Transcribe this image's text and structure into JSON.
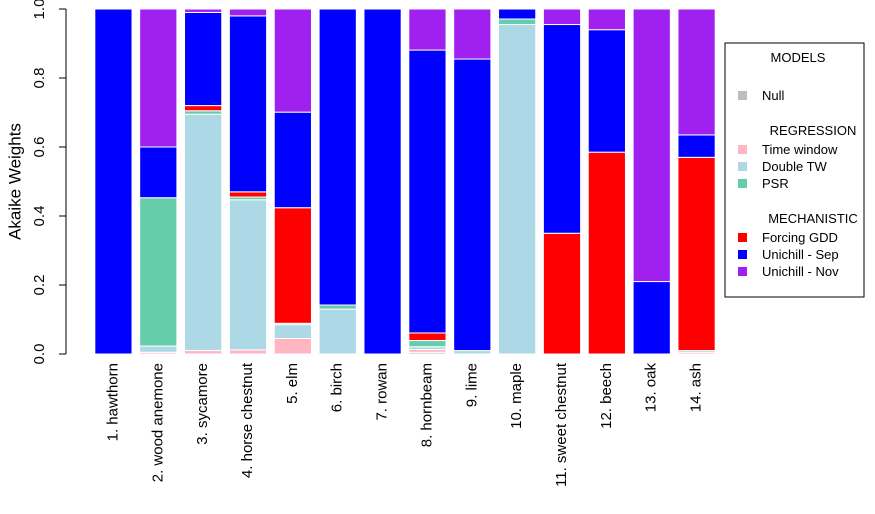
{
  "chart_data": {
    "type": "bar",
    "stacked": true,
    "ylabel": "Akaike Weights",
    "xlabel": "",
    "ylim": [
      0,
      1
    ],
    "yticks": [
      "0.0",
      "0.2",
      "0.4",
      "0.6",
      "0.8",
      "1.0"
    ],
    "grid": false,
    "legend_position": "right",
    "categories": [
      "1. hawthorn",
      "2. wood anemone",
      "3. sycamore",
      "4. horse chestnut",
      "5. elm",
      "6. birch",
      "7. rowan",
      "8. hornbeam",
      "9. lime",
      "10. maple",
      "11. sweet chestnut",
      "12. beech",
      "13. oak",
      "14. ash"
    ],
    "legend": {
      "title": "MODELS",
      "groups": [
        {
          "heading": "",
          "items": [
            "Null"
          ]
        },
        {
          "heading": "REGRESSION",
          "items": [
            "Time window",
            "Double TW",
            "PSR"
          ]
        },
        {
          "heading": "MECHANISTIC",
          "items": [
            "Forcing GDD",
            "Unichill - Sep",
            "Unichill - Nov"
          ]
        }
      ]
    },
    "series": [
      {
        "name": "Null",
        "color": "#bebebe",
        "values": [
          0,
          0,
          0,
          0,
          0,
          0,
          0,
          0.005,
          0,
          0,
          0,
          0,
          0,
          0
        ]
      },
      {
        "name": "Time window",
        "color": "#ffb6c1",
        "values": [
          0,
          0.005,
          0.01,
          0.012,
          0.045,
          0,
          0,
          0.008,
          0,
          0,
          0,
          0,
          0,
          0.005
        ]
      },
      {
        "name": "Double TW",
        "color": "#add8e6",
        "values": [
          0,
          0.018,
          0.685,
          0.435,
          0.04,
          0.13,
          0,
          0.008,
          0.01,
          0.955,
          0,
          0,
          0,
          0.005
        ]
      },
      {
        "name": "PSR",
        "color": "#66cdaa",
        "values": [
          0,
          0.43,
          0.01,
          0.008,
          0.004,
          0.012,
          0,
          0.018,
          0,
          0.016,
          0,
          0,
          0,
          0
        ]
      },
      {
        "name": "Forcing GDD",
        "color": "#ff0000",
        "values": [
          0,
          0,
          0.015,
          0.015,
          0.335,
          0,
          0,
          0.022,
          0,
          0,
          0.35,
          0.585,
          0,
          0.56
        ]
      },
      {
        "name": "Unichill - Sep",
        "color": "#0000ff",
        "values": [
          1.0,
          0.147,
          0.27,
          0.51,
          0.277,
          0.858,
          1.0,
          0.82,
          0.845,
          0.029,
          0.605,
          0.355,
          0.21,
          0.065
        ]
      },
      {
        "name": "Unichill - Nov",
        "color": "#a020f0",
        "values": [
          0,
          0.4,
          0.01,
          0.02,
          0.299,
          0,
          0,
          0.119,
          0.145,
          0,
          0.045,
          0.06,
          0.79,
          0.365
        ]
      }
    ]
  }
}
